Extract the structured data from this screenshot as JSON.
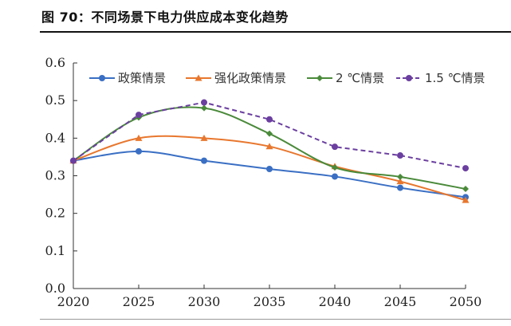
{
  "figure": {
    "title": "图 70：不同场景下电力供应成本变化趋势"
  },
  "chart_data": {
    "type": "line",
    "title": "",
    "xlabel": "",
    "ylabel": "",
    "x": [
      2020,
      2025,
      2030,
      2035,
      2040,
      2045,
      2050
    ],
    "ylim": [
      0.0,
      0.6
    ],
    "yticks": [
      "0.0",
      "0.1",
      "0.2",
      "0.3",
      "0.4",
      "0.5",
      "0.6"
    ],
    "grid": false,
    "legend_position": "top",
    "series": [
      {
        "name": "政策情景",
        "color": "#3a6fc4",
        "marker": "circle",
        "dash": "solid",
        "smooth": true,
        "values": [
          0.34,
          0.365,
          0.34,
          0.318,
          0.298,
          0.268,
          0.243
        ]
      },
      {
        "name": "强化政策情景",
        "color": "#e8772e",
        "marker": "triangle",
        "dash": "solid",
        "smooth": true,
        "values": [
          0.34,
          0.4,
          0.4,
          0.378,
          0.325,
          0.285,
          0.235
        ]
      },
      {
        "name": "2 ℃情景",
        "color": "#4a8a3a",
        "marker": "diamond",
        "dash": "solid",
        "smooth": true,
        "values": [
          0.34,
          0.455,
          0.48,
          0.412,
          0.322,
          0.297,
          0.265
        ]
      },
      {
        "name": "1.5 ℃情景",
        "color": "#6b3fa0",
        "marker": "circle",
        "dash": "dashed",
        "smooth": false,
        "values": [
          0.34,
          0.462,
          0.495,
          0.45,
          0.377,
          0.354,
          0.32
        ]
      }
    ]
  }
}
